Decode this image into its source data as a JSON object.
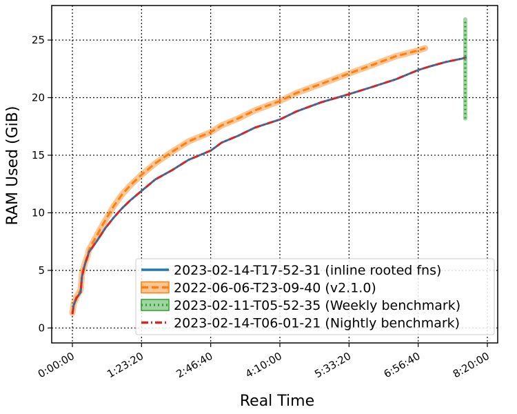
{
  "chart_data": {
    "type": "line",
    "xlabel": "Real Time",
    "ylabel": "RAM Used (GiB)",
    "x_unit": "elapsed time (H:MM:SS)",
    "xlim": [
      "0:00:00",
      "8:20:00"
    ],
    "ylim": [
      -1.3,
      28
    ],
    "x_ticks": [
      "0:00:00",
      "1:23:20",
      "2:46:40",
      "4:10:00",
      "5:33:20",
      "6:56:40",
      "8:20:00"
    ],
    "y_ticks": [
      0,
      5,
      10,
      15,
      20,
      25
    ],
    "grid": true,
    "legend_position": "lower right",
    "series": [
      {
        "name": "2023-02-14-T17-52-31 (inline rooted fns)",
        "color": "#1f77b4",
        "style": "solid",
        "x": [
          "0:00:00",
          "0:01:40",
          "0:05:00",
          "0:10:00",
          "0:11:40",
          "0:13:20",
          "0:15:00",
          "0:18:20",
          "0:20:00",
          "0:30:00",
          "0:40:00",
          "0:50:00",
          "1:00:00",
          "1:10:00",
          "1:23:20",
          "1:40:00",
          "2:00:00",
          "2:20:00",
          "2:46:40",
          "3:00:00",
          "3:20:00",
          "3:40:00",
          "4:10:00",
          "4:30:00",
          "5:00:00",
          "5:33:20",
          "6:00:00",
          "6:30:00",
          "6:56:40",
          "7:10:00",
          "7:30:00",
          "7:50:00",
          "7:55:00"
        ],
        "y": [
          1.2,
          2.0,
          2.6,
          3.1,
          4.5,
          5.0,
          5.5,
          6.2,
          6.6,
          7.6,
          8.7,
          9.6,
          10.4,
          11.1,
          11.9,
          12.9,
          13.7,
          14.6,
          15.4,
          16.1,
          16.7,
          17.4,
          18.1,
          18.8,
          19.6,
          20.3,
          20.9,
          21.6,
          22.4,
          22.7,
          23.1,
          23.4,
          23.5
        ]
      },
      {
        "name": "2022-06-06-T23-09-40 (v2.1.0)",
        "color": "#ff7f0e",
        "style": "dashed",
        "x": [
          "0:00:00",
          "0:01:40",
          "0:05:00",
          "0:10:00",
          "0:11:40",
          "0:13:20",
          "0:15:00",
          "0:18:20",
          "0:20:00",
          "0:30:00",
          "0:40:00",
          "0:50:00",
          "1:00:00",
          "1:10:00",
          "1:23:20",
          "1:40:00",
          "2:00:00",
          "2:20:00",
          "2:46:40",
          "3:00:00",
          "3:20:00",
          "3:40:00",
          "4:10:00",
          "4:30:00",
          "5:00:00",
          "5:33:20",
          "6:00:00",
          "6:30:00",
          "6:56:40",
          "7:05:00"
        ],
        "y": [
          1.3,
          2.1,
          2.7,
          3.3,
          4.7,
          5.2,
          5.6,
          6.3,
          6.8,
          8.1,
          9.4,
          10.6,
          11.6,
          12.4,
          13.3,
          14.3,
          15.3,
          16.2,
          17.0,
          17.6,
          18.2,
          18.9,
          19.7,
          20.4,
          21.2,
          22.1,
          22.8,
          23.6,
          24.1,
          24.3
        ]
      },
      {
        "name": "2023-02-11-T05-52-35 (Weekly benchmark)",
        "color": "#2ca02c",
        "style": "dotted",
        "x": [
          "7:53:20",
          "7:53:20",
          "7:53:20"
        ],
        "y": [
          18.2,
          22.8,
          26.8
        ]
      },
      {
        "name": "2023-02-14-T06-01-21 (Nightly benchmark)",
        "color": "#d62728",
        "style": "dashdot",
        "x": [
          "0:00:00",
          "0:01:40",
          "0:05:00",
          "0:10:00",
          "0:11:40",
          "0:13:20",
          "0:15:00",
          "0:18:20",
          "0:20:00",
          "0:30:00",
          "0:40:00",
          "0:50:00",
          "1:00:00",
          "1:10:00",
          "1:23:20",
          "1:40:00",
          "2:00:00",
          "2:20:00",
          "2:46:40",
          "3:00:00",
          "3:20:00",
          "3:40:00",
          "4:10:00",
          "4:30:00",
          "5:00:00",
          "5:33:20",
          "6:00:00",
          "6:30:00",
          "6:56:40",
          "7:10:00",
          "7:30:00",
          "7:50:00",
          "7:53:20"
        ],
        "y": [
          1.2,
          2.0,
          2.6,
          3.1,
          4.5,
          5.0,
          5.5,
          6.2,
          6.6,
          7.6,
          8.7,
          9.6,
          10.4,
          11.1,
          11.9,
          12.9,
          13.7,
          14.6,
          15.4,
          16.1,
          16.7,
          17.4,
          18.1,
          18.8,
          19.6,
          20.3,
          20.9,
          21.6,
          22.4,
          22.7,
          23.1,
          23.4,
          23.5
        ]
      }
    ]
  }
}
